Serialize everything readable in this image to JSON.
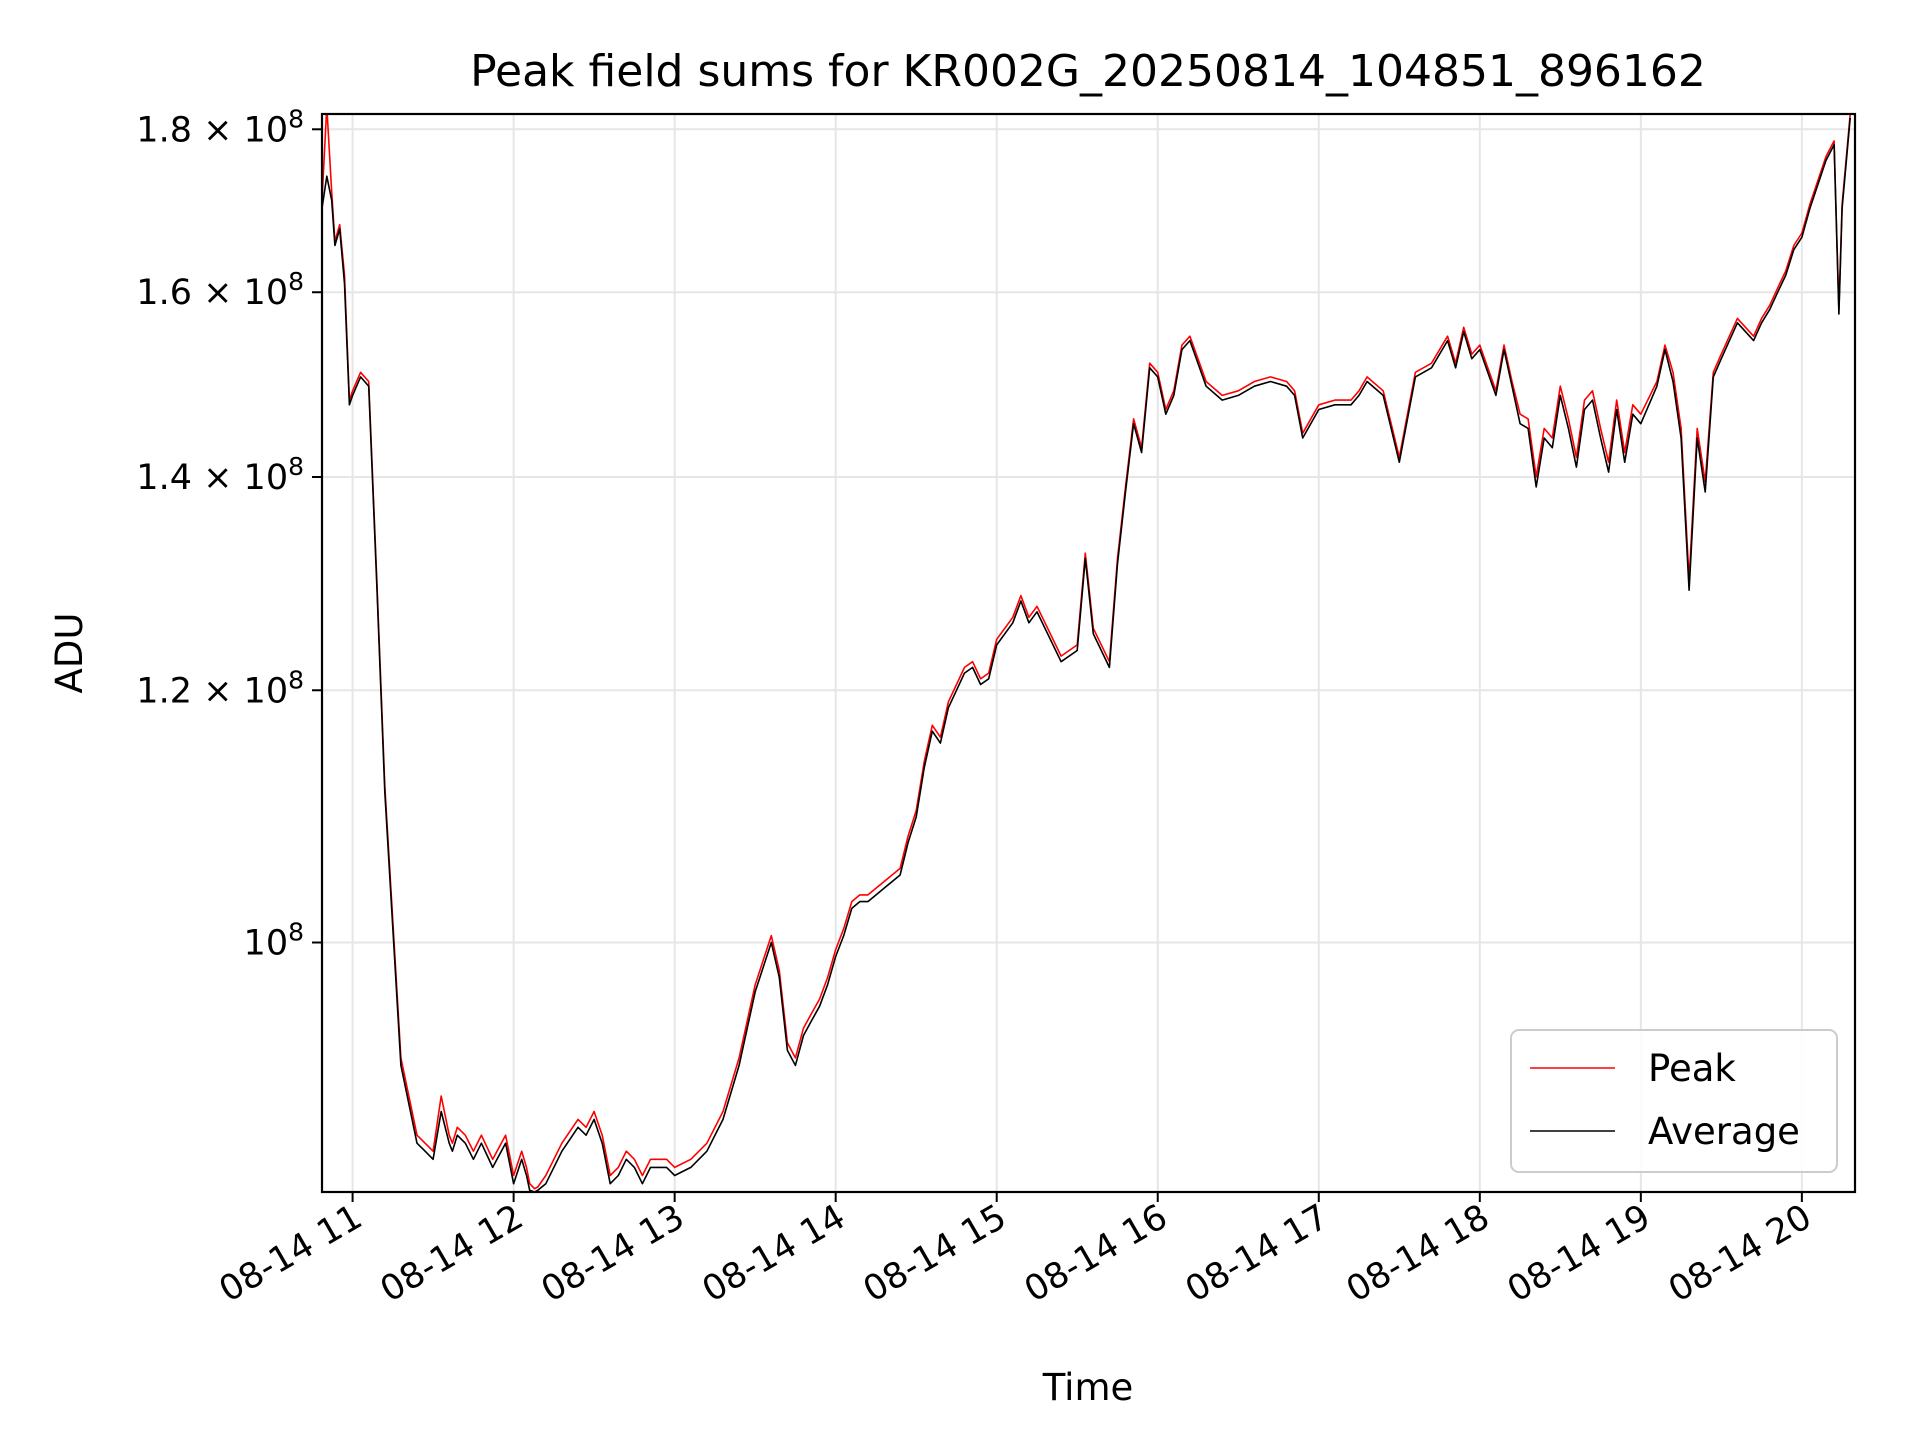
{
  "chart_data": {
    "type": "line",
    "title": "Peak field sums for KR002G_20250814_104851_896162",
    "xlabel": "Time",
    "ylabel": "ADU",
    "x_unit": "hour of 2025-08-14",
    "xlim": [
      10.81,
      20.33
    ],
    "ylim": [
      83500000,
      182000000
    ],
    "yscale": "log",
    "grid": true,
    "legend_position": "lower-right",
    "x_ticks": [
      {
        "value": 11,
        "label": "08-14 11"
      },
      {
        "value": 12,
        "label": "08-14 12"
      },
      {
        "value": 13,
        "label": "08-14 13"
      },
      {
        "value": 14,
        "label": "08-14 14"
      },
      {
        "value": 15,
        "label": "08-14 15"
      },
      {
        "value": 16,
        "label": "08-14 16"
      },
      {
        "value": 17,
        "label": "08-14 17"
      },
      {
        "value": 18,
        "label": "08-14 18"
      },
      {
        "value": 19,
        "label": "08-14 19"
      },
      {
        "value": 20,
        "label": "08-14 20"
      }
    ],
    "y_ticks": [
      {
        "value": 100000000,
        "base": "10",
        "exp": "8",
        "mant": ""
      },
      {
        "value": 120000000,
        "base": "10",
        "exp": "8",
        "mant": "1.2"
      },
      {
        "value": 140000000,
        "base": "10",
        "exp": "8",
        "mant": "1.4"
      },
      {
        "value": 160000000,
        "base": "10",
        "exp": "8",
        "mant": "1.6"
      },
      {
        "value": 180000000,
        "base": "10",
        "exp": "8",
        "mant": "1.8"
      }
    ],
    "series": [
      {
        "name": "Peak",
        "color": "#ff0000"
      },
      {
        "name": "Average",
        "color": "#000000"
      }
    ],
    "x": [
      10.81,
      10.84,
      10.87,
      10.89,
      10.92,
      10.95,
      10.98,
      11.0,
      11.05,
      11.1,
      11.15,
      11.2,
      11.3,
      11.4,
      11.45,
      11.5,
      11.55,
      11.6,
      11.62,
      11.65,
      11.7,
      11.75,
      11.8,
      11.87,
      11.95,
      12.0,
      12.05,
      12.08,
      12.1,
      12.13,
      12.15,
      12.2,
      12.3,
      12.4,
      12.45,
      12.5,
      12.55,
      12.6,
      12.65,
      12.7,
      12.75,
      12.8,
      12.85,
      12.9,
      12.95,
      13.0,
      13.1,
      13.2,
      13.3,
      13.4,
      13.5,
      13.6,
      13.65,
      13.7,
      13.75,
      13.8,
      13.85,
      13.9,
      13.95,
      14.0,
      14.05,
      14.1,
      14.15,
      14.2,
      14.3,
      14.4,
      14.45,
      14.5,
      14.55,
      14.6,
      14.65,
      14.7,
      14.75,
      14.8,
      14.85,
      14.9,
      14.95,
      15.0,
      15.05,
      15.1,
      15.15,
      15.2,
      15.25,
      15.3,
      15.4,
      15.5,
      15.55,
      15.6,
      15.7,
      15.75,
      15.8,
      15.85,
      15.9,
      15.95,
      16.0,
      16.05,
      16.1,
      16.15,
      16.2,
      16.3,
      16.4,
      16.5,
      16.6,
      16.7,
      16.8,
      16.85,
      16.9,
      17.0,
      17.1,
      17.2,
      17.25,
      17.3,
      17.4,
      17.5,
      17.6,
      17.7,
      17.8,
      17.85,
      17.9,
      17.95,
      18.0,
      18.1,
      18.15,
      18.2,
      18.25,
      18.3,
      18.35,
      18.4,
      18.45,
      18.5,
      18.55,
      18.6,
      18.65,
      18.7,
      18.75,
      18.8,
      18.85,
      18.9,
      18.95,
      19.0,
      19.1,
      19.15,
      19.2,
      19.25,
      19.3,
      19.35,
      19.4,
      19.45,
      19.5,
      19.6,
      19.7,
      19.75,
      19.8,
      19.85,
      19.9,
      19.95,
      20.0,
      20.05,
      20.1,
      20.15,
      20.2,
      20.23,
      20.25,
      20.3,
      20.33
    ],
    "peak_values": [
      171000000,
      183000000,
      172000000,
      166000000,
      168000000,
      162000000,
      148000000,
      149000000,
      151000000,
      150000000,
      130000000,
      112000000,
      92000000,
      87000000,
      86500000,
      86000000,
      89500000,
      87000000,
      86500000,
      87500000,
      87000000,
      86000000,
      87000000,
      85500000,
      87000000,
      84500000,
      86000000,
      85000000,
      84000000,
      83700000,
      83800000,
      84500000,
      86500000,
      88000000,
      87500000,
      88500000,
      87000000,
      84500000,
      85000000,
      86000000,
      85500000,
      84500000,
      85500000,
      85500000,
      85500000,
      85000000,
      85500000,
      86500000,
      88500000,
      92000000,
      97000000,
      100500000,
      98000000,
      93000000,
      92000000,
      94000000,
      95000000,
      96000000,
      97500000,
      99500000,
      101000000,
      103000000,
      103500000,
      103500000,
      104500000,
      105500000,
      108000000,
      110000000,
      114000000,
      117000000,
      116000000,
      119000000,
      120500000,
      122000000,
      122500000,
      121000000,
      121500000,
      124500000,
      125500000,
      126500000,
      128500000,
      126500000,
      127500000,
      126000000,
      123000000,
      124000000,
      132500000,
      125500000,
      122500000,
      132000000,
      139000000,
      146000000,
      143000000,
      152000000,
      151000000,
      147000000,
      149000000,
      154000000,
      155000000,
      150000000,
      148500000,
      149000000,
      150000000,
      150500000,
      150000000,
      149000000,
      144500000,
      147500000,
      148000000,
      148000000,
      149000000,
      150500000,
      149000000,
      142000000,
      151000000,
      152000000,
      155000000,
      152000000,
      156000000,
      153000000,
      154000000,
      149000000,
      154000000,
      150000000,
      146500000,
      146000000,
      140000000,
      145000000,
      144000000,
      149500000,
      146000000,
      142000000,
      148000000,
      149000000,
      145000000,
      141500000,
      148000000,
      142500000,
      147500000,
      146500000,
      150000000,
      154000000,
      151000000,
      145000000,
      130000000,
      145000000,
      139500000,
      151000000,
      153000000,
      157000000,
      155000000,
      157000000,
      158500000,
      160500000,
      162500000,
      165500000,
      167000000,
      170500000,
      173500000,
      176500000,
      178500000,
      158000000,
      170500000,
      182000000
    ],
    "avg_values": [
      170000000,
      174000000,
      171000000,
      165500000,
      167500000,
      161000000,
      147500000,
      148500000,
      150500000,
      149500000,
      129500000,
      111500000,
      91500000,
      86500000,
      86000000,
      85500000,
      88500000,
      86500000,
      86000000,
      87000000,
      86500000,
      85500000,
      86500000,
      85000000,
      86500000,
      84000000,
      85500000,
      84500000,
      83600000,
      83500000,
      83600000,
      84000000,
      86000000,
      87500000,
      87000000,
      88000000,
      86500000,
      84000000,
      84500000,
      85500000,
      85000000,
      84000000,
      85000000,
      85000000,
      85000000,
      84500000,
      85000000,
      86000000,
      88000000,
      91500000,
      96500000,
      100000000,
      97500000,
      92500000,
      91500000,
      93500000,
      94500000,
      95500000,
      97000000,
      99000000,
      100500000,
      102500000,
      103000000,
      103000000,
      104000000,
      105000000,
      107500000,
      109500000,
      113500000,
      116500000,
      115500000,
      118500000,
      120000000,
      121500000,
      122000000,
      120500000,
      121000000,
      124000000,
      125000000,
      126000000,
      128000000,
      126000000,
      127000000,
      125500000,
      122500000,
      123500000,
      132000000,
      125000000,
      122000000,
      131500000,
      138500000,
      145500000,
      142500000,
      151500000,
      150500000,
      146500000,
      148500000,
      153500000,
      154500000,
      149500000,
      148000000,
      148500000,
      149500000,
      150000000,
      149500000,
      148500000,
      144000000,
      147000000,
      147500000,
      147500000,
      148500000,
      150000000,
      148500000,
      141500000,
      150500000,
      151500000,
      154500000,
      151500000,
      155500000,
      152500000,
      153500000,
      148500000,
      153500000,
      149500000,
      145500000,
      145000000,
      139000000,
      144000000,
      143000000,
      148500000,
      145000000,
      141000000,
      147000000,
      148000000,
      144000000,
      140500000,
      147000000,
      141500000,
      146500000,
      145500000,
      149500000,
      153500000,
      150000000,
      144000000,
      129000000,
      144000000,
      138500000,
      150500000,
      152500000,
      156500000,
      154500000,
      156500000,
      158000000,
      160000000,
      162000000,
      165000000,
      166500000,
      170000000,
      173000000,
      176000000,
      178000000,
      157500000,
      170000000,
      181500000
    ]
  }
}
